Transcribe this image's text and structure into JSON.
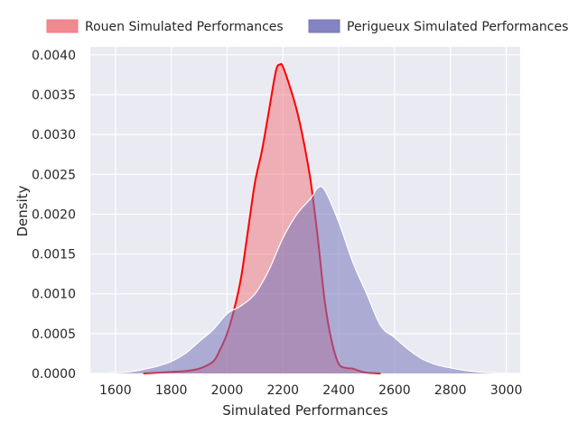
{
  "chart_data": {
    "type": "area",
    "xlabel": "Simulated Performances",
    "ylabel": "Density",
    "xlim": [
      1510,
      3050
    ],
    "ylim": [
      0,
      0.0041
    ],
    "xticks": [
      1600,
      1800,
      2000,
      2200,
      2400,
      2600,
      2800,
      3000
    ],
    "xtick_labels": [
      "1600",
      "1800",
      "2000",
      "2200",
      "2400",
      "2600",
      "2800",
      "3000"
    ],
    "yticks": [
      0,
      0.0005,
      0.001,
      0.0015,
      0.002,
      0.0025,
      0.003,
      0.0035,
      0.004
    ],
    "ytick_labels": [
      "0.0000",
      "0.0005",
      "0.0010",
      "0.0015",
      "0.0020",
      "0.0025",
      "0.0030",
      "0.0035",
      "0.0040"
    ],
    "grid": true,
    "legend_position": "top",
    "series": [
      {
        "name": "Rouen Simulated Performances",
        "fill_color": "#f07c84",
        "line_color": "#ff0000",
        "x": [
          1700,
          1750,
          1800,
          1850,
          1900,
          1950,
          1975,
          2000,
          2025,
          2050,
          2075,
          2100,
          2125,
          2150,
          2175,
          2190,
          2200,
          2225,
          2250,
          2275,
          2300,
          2325,
          2350,
          2375,
          2400,
          2425,
          2450,
          2475,
          2500,
          2550
        ],
        "y": [
          0,
          1e-05,
          2e-05,
          3e-05,
          6e-05,
          0.00015,
          0.0003,
          0.0005,
          0.0008,
          0.0012,
          0.0018,
          0.0024,
          0.0028,
          0.0033,
          0.0038,
          0.00388,
          0.00385,
          0.0036,
          0.0033,
          0.0029,
          0.0024,
          0.0017,
          0.0009,
          0.0004,
          0.00012,
          7e-05,
          6e-05,
          3e-05,
          1e-05,
          0
        ]
      },
      {
        "name": "Perigueux Simulated Performances",
        "fill_color": "#7777bb",
        "line_color": "#ffffff",
        "x": [
          1570,
          1600,
          1650,
          1700,
          1750,
          1800,
          1850,
          1900,
          1950,
          2000,
          2050,
          2100,
          2150,
          2200,
          2250,
          2300,
          2325,
          2350,
          2400,
          2450,
          2500,
          2550,
          2600,
          2650,
          2700,
          2750,
          2800,
          2850,
          2900,
          2950,
          3000
        ],
        "y": [
          0,
          1e-05,
          2e-05,
          5e-05,
          9e-05,
          0.00015,
          0.00025,
          0.0004,
          0.00055,
          0.00075,
          0.00085,
          0.001,
          0.0013,
          0.0017,
          0.002,
          0.0022,
          0.00233,
          0.0023,
          0.0019,
          0.0014,
          0.001,
          0.0006,
          0.00045,
          0.0003,
          0.00018,
          0.00011,
          7e-05,
          4e-05,
          2e-05,
          1e-05,
          0
        ]
      }
    ]
  }
}
